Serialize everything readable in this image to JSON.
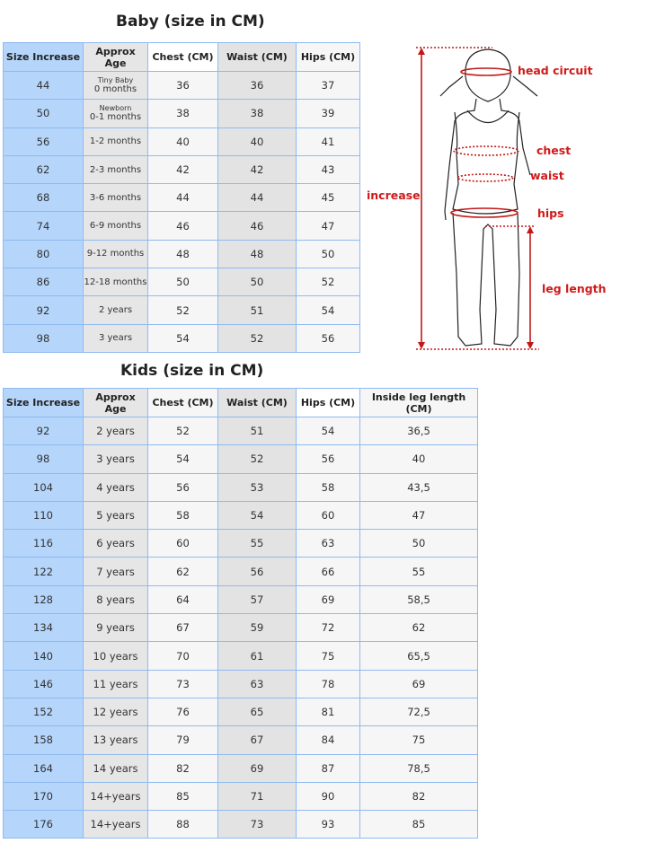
{
  "baby": {
    "title": "Baby (size in CM)",
    "headers": [
      "Size Increase",
      "Approx Age",
      "Chest (CM)",
      "Waist (CM)",
      "Hips (CM)"
    ],
    "rows": [
      {
        "size": "44",
        "age_note": "Tiny Baby",
        "age": "0 months",
        "chest": "36",
        "waist": "36",
        "hips": "37"
      },
      {
        "size": "50",
        "age_note": "Newborn",
        "age": "0-1 months",
        "chest": "38",
        "waist": "38",
        "hips": "39"
      },
      {
        "size": "56",
        "age": "1-2 months",
        "chest": "40",
        "waist": "40",
        "hips": "41"
      },
      {
        "size": "62",
        "age": "2-3 months",
        "chest": "42",
        "waist": "42",
        "hips": "43"
      },
      {
        "size": "68",
        "age": "3-6 months",
        "chest": "44",
        "waist": "44",
        "hips": "45"
      },
      {
        "size": "74",
        "age": "6-9 months",
        "chest": "46",
        "waist": "46",
        "hips": "47"
      },
      {
        "size": "80",
        "age": "9-12 months",
        "chest": "48",
        "waist": "48",
        "hips": "50"
      },
      {
        "size": "86",
        "age": "12-18 months",
        "chest": "50",
        "waist": "50",
        "hips": "52"
      },
      {
        "size": "92",
        "age": "2 years",
        "chest": "52",
        "waist": "51",
        "hips": "54"
      },
      {
        "size": "98",
        "age": "3 years",
        "chest": "54",
        "waist": "52",
        "hips": "56"
      }
    ]
  },
  "kids": {
    "title": "Kids (size in CM)",
    "headers": [
      "Size Increase",
      "Approx Age",
      "Chest (CM)",
      "Waist (CM)",
      "Hips (CM)",
      "Inside leg length (CM)"
    ],
    "rows": [
      {
        "size": "92",
        "age": "2 years",
        "chest": "52",
        "waist": "51",
        "hips": "54",
        "leg": "36,5"
      },
      {
        "size": "98",
        "age": "3 years",
        "chest": "54",
        "waist": "52",
        "hips": "56",
        "leg": "40"
      },
      {
        "size": "104",
        "age": "4 years",
        "chest": "56",
        "waist": "53",
        "hips": "58",
        "leg": "43,5"
      },
      {
        "size": "110",
        "age": "5 years",
        "chest": "58",
        "waist": "54",
        "hips": "60",
        "leg": "47"
      },
      {
        "size": "116",
        "age": "6 years",
        "chest": "60",
        "waist": "55",
        "hips": "63",
        "leg": "50"
      },
      {
        "size": "122",
        "age": "7 years",
        "chest": "62",
        "waist": "56",
        "hips": "66",
        "leg": "55"
      },
      {
        "size": "128",
        "age": "8 years",
        "chest": "64",
        "waist": "57",
        "hips": "69",
        "leg": "58,5"
      },
      {
        "size": "134",
        "age": "9 years",
        "chest": "67",
        "waist": "59",
        "hips": "72",
        "leg": "62"
      },
      {
        "size": "140",
        "age": "10 years",
        "chest": "70",
        "waist": "61",
        "hips": "75",
        "leg": "65,5"
      },
      {
        "size": "146",
        "age": "11 years",
        "chest": "73",
        "waist": "63",
        "hips": "78",
        "leg": "69"
      },
      {
        "size": "152",
        "age": "12 years",
        "chest": "76",
        "waist": "65",
        "hips": "81",
        "leg": "72,5"
      },
      {
        "size": "158",
        "age": "13 years",
        "chest": "79",
        "waist": "67",
        "hips": "84",
        "leg": "75"
      },
      {
        "size": "164",
        "age": "14 years",
        "chest": "82",
        "waist": "69",
        "hips": "87",
        "leg": "78,5"
      },
      {
        "size": "170",
        "age": "14+years",
        "chest": "85",
        "waist": "71",
        "hips": "90",
        "leg": "82"
      },
      {
        "size": "176",
        "age": "14+years",
        "chest": "88",
        "waist": "73",
        "hips": "93",
        "leg": "85"
      }
    ]
  },
  "figure": {
    "labels": {
      "head": "head circuit",
      "chest": "chest",
      "waist": "waist",
      "hips": "hips",
      "increase": "increase",
      "leg": "leg length"
    },
    "accent": "#d01a1a"
  }
}
